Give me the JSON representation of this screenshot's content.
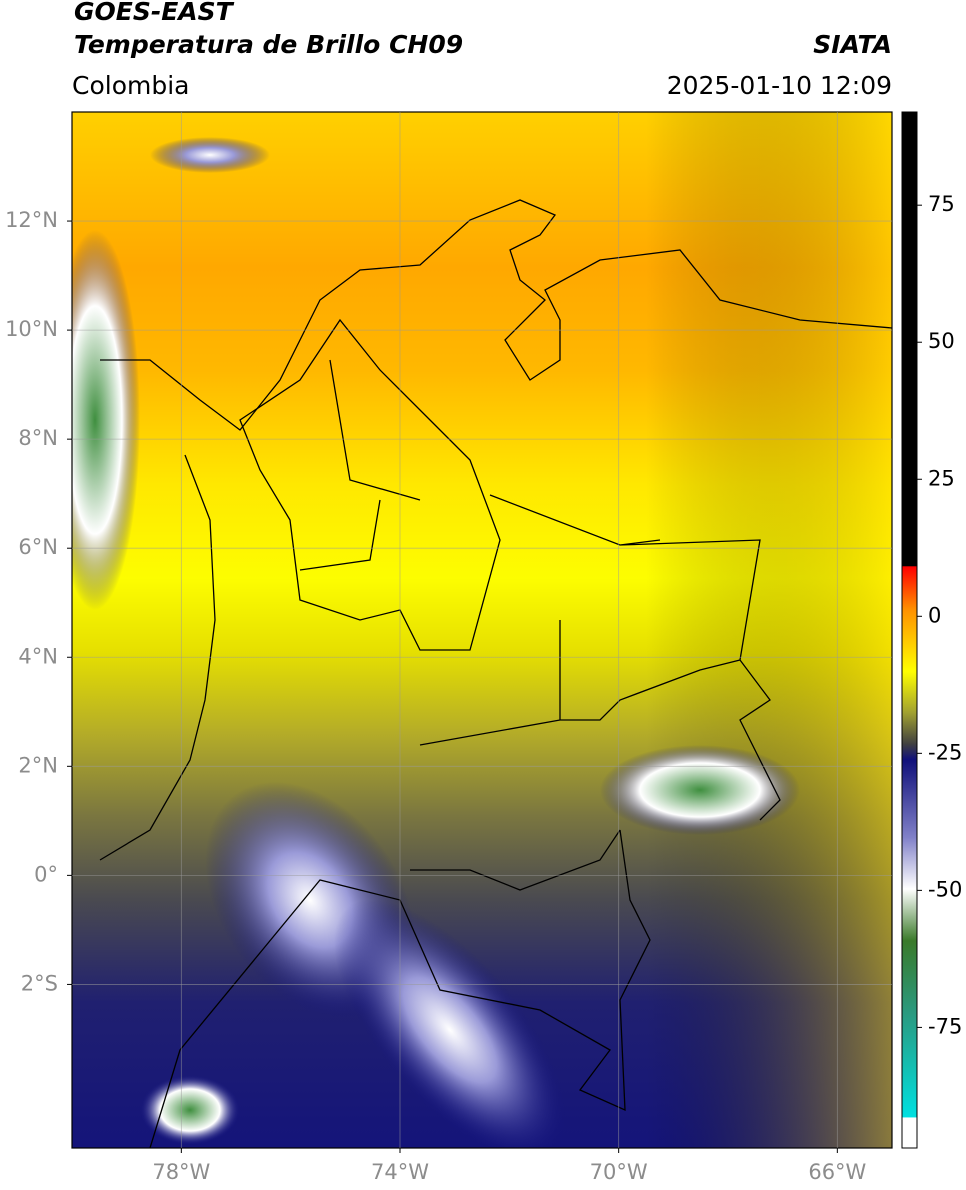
{
  "map": {
    "title": "GOES-EAST",
    "subtitle": "Temperatura de Brillo CH09",
    "source": "SIATA",
    "region": "Colombia",
    "datetime": "2025-01-10 12:09",
    "xlim": [
      -80,
      -65
    ],
    "ylim": [
      -5,
      14
    ],
    "xticks": [
      {
        "value": -78,
        "label": "78°W"
      },
      {
        "value": -74,
        "label": "74°W"
      },
      {
        "value": -70,
        "label": "70°W"
      },
      {
        "value": -66,
        "label": "66°W"
      }
    ],
    "yticks": [
      {
        "value": 12,
        "label": "12°N"
      },
      {
        "value": 10,
        "label": "10°N"
      },
      {
        "value": 8,
        "label": "8°N"
      },
      {
        "value": 6,
        "label": "6°N"
      },
      {
        "value": 4,
        "label": "4°N"
      },
      {
        "value": 2,
        "label": "2°N"
      },
      {
        "value": 0,
        "label": "0°"
      },
      {
        "value": -2,
        "label": "2°S"
      }
    ],
    "colorbar": {
      "lim": [
        -97,
        92
      ],
      "ticks": [
        75,
        50,
        25,
        0,
        -25,
        -50,
        -75
      ]
    }
  }
}
